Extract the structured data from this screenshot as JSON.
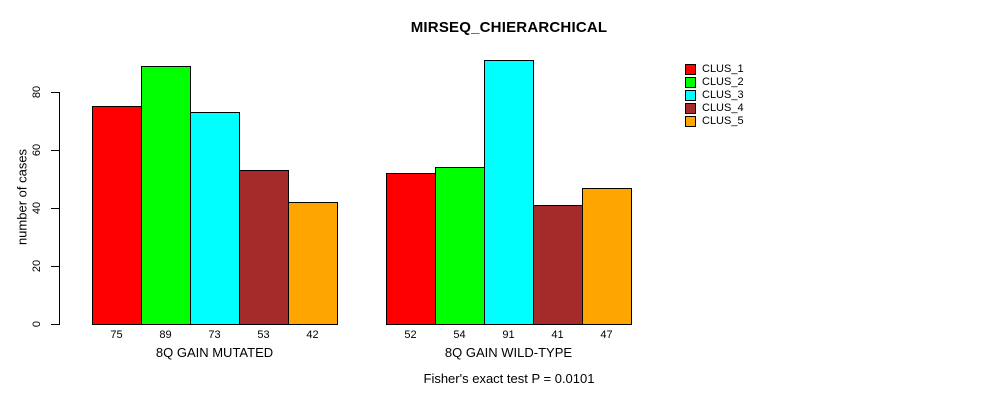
{
  "figure": {
    "title": "MIRSEQ_CHIERARCHICAL",
    "caption": "Fisher's exact test P = 0.0101"
  },
  "chart_data": {
    "type": "bar",
    "title": "MIRSEQ_CHIERARCHICAL",
    "xlabel": "",
    "ylabel": "number of cases",
    "ylim": [
      0,
      95
    ],
    "yticks": [
      0,
      20,
      40,
      60,
      80
    ],
    "grid": false,
    "legend_position": "right-inside",
    "bar_value_labels": true,
    "categories": [
      "8Q GAIN MUTATED",
      "8Q GAIN WILD-TYPE"
    ],
    "groups": [
      {
        "label": "8Q GAIN MUTATED",
        "values": [
          75,
          89,
          73,
          53,
          42
        ]
      },
      {
        "label": "8Q GAIN WILD-TYPE",
        "values": [
          52,
          54,
          91,
          41,
          47
        ]
      }
    ],
    "series": [
      {
        "name": "CLUS_1",
        "color": "#FF0000",
        "values": [
          75,
          52
        ]
      },
      {
        "name": "CLUS_2",
        "color": "#00FF00",
        "values": [
          89,
          54
        ]
      },
      {
        "name": "CLUS_3",
        "color": "#00FFFF",
        "values": [
          73,
          91
        ]
      },
      {
        "name": "CLUS_4",
        "color": "#A52A2A",
        "values": [
          53,
          41
        ]
      },
      {
        "name": "CLUS_5",
        "color": "#FFA500",
        "values": [
          42,
          47
        ]
      }
    ],
    "annotation": "Fisher's exact test P = 0.0101"
  }
}
